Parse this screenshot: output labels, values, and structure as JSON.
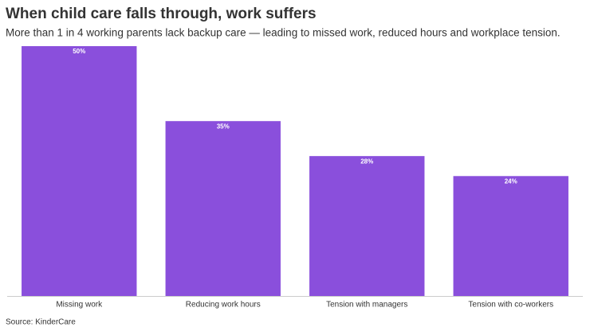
{
  "chart_data": {
    "type": "bar",
    "title": "When child care falls through, work suffers",
    "subtitle": "More than 1 in 4 working parents lack backup care — leading to missed work, reduced hours and workplace tension.",
    "categories": [
      "Missing work",
      "Reducing work hours",
      "Tension with managers",
      "Tension with co-workers"
    ],
    "values": [
      50,
      35,
      28,
      24
    ],
    "value_labels": [
      "50%",
      "35%",
      "28%",
      "24%"
    ],
    "color": "#8a4fdc",
    "ylim": [
      0,
      50
    ],
    "source": "Source: KinderCare"
  }
}
